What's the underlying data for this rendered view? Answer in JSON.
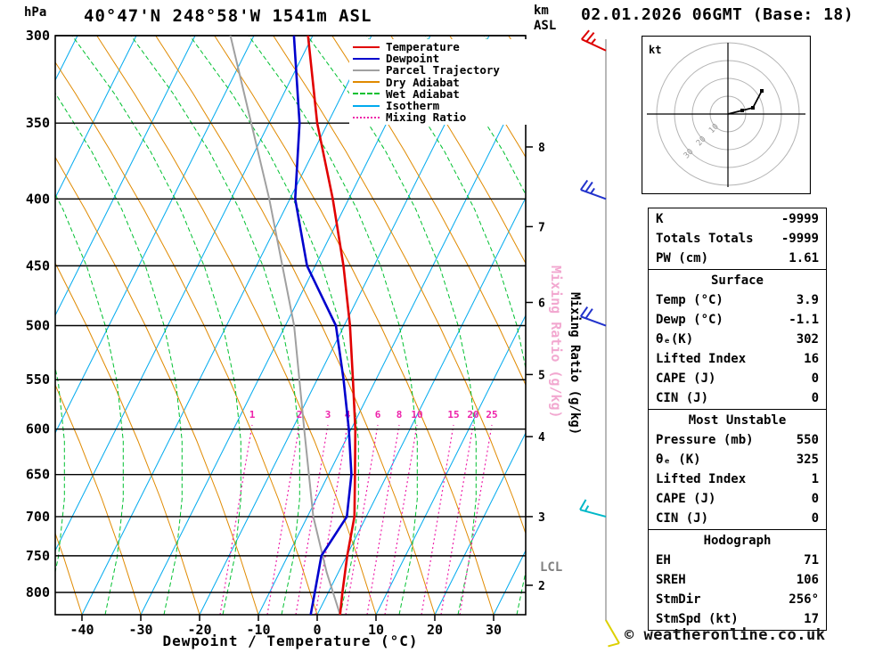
{
  "header": {
    "title": "40°47'N 248°58'W 1541m ASL",
    "datetime": "02.01.2026 06GMT (Base: 18)",
    "pressure_unit": "hPa",
    "altitude_unit": "km",
    "altitude_ref": "ASL"
  },
  "colors": {
    "temperature": "#e10000",
    "dewpoint": "#0000cd",
    "parcel": "#a0a0a0",
    "dry_adiabat": "#e08a00",
    "wet_adiabat": "#00c030",
    "isotherm": "#00aaee",
    "mixing_ratio": "#ee22aa",
    "watermark_pink": "#f2a8d0",
    "barb_column": "#a0a0a0"
  },
  "axes": {
    "pressure_ticks": [
      300,
      350,
      400,
      450,
      500,
      550,
      600,
      650,
      700,
      750,
      800
    ],
    "temperature_ticks": [
      -40,
      -30,
      -20,
      -10,
      0,
      10,
      20,
      30
    ],
    "x_label": "Dewpoint / Temperature (°C)",
    "right_axis_label": "Mixing Ratio (g/kg)",
    "km_ticks": [
      {
        "km": "8",
        "p": 365
      },
      {
        "km": "7",
        "p": 420
      },
      {
        "km": "6",
        "p": 480
      },
      {
        "km": "5",
        "p": 545
      },
      {
        "km": "4",
        "p": 608
      },
      {
        "km": "3",
        "p": 700
      },
      {
        "km": "2",
        "p": 790
      }
    ],
    "lcl": {
      "label": "LCL",
      "pressure": 772
    }
  },
  "legend": [
    {
      "label": "Temperature",
      "color": "#e10000",
      "style": "solid"
    },
    {
      "label": "Dewpoint",
      "color": "#0000cd",
      "style": "solid"
    },
    {
      "label": "Parcel Trajectory",
      "color": "#a0a0a0",
      "style": "solid"
    },
    {
      "label": "Dry Adiabat",
      "color": "#e08a00",
      "style": "solid"
    },
    {
      "label": "Wet Adiabat",
      "color": "#00c030",
      "style": "dashed"
    },
    {
      "label": "Isotherm",
      "color": "#00aaee",
      "style": "solid"
    },
    {
      "label": "Mixing Ratio",
      "color": "#ee22aa",
      "style": "dotted"
    }
  ],
  "mixing_ratio_labels": [
    {
      "value": "1",
      "x": 283
    },
    {
      "value": "2",
      "x": 336
    },
    {
      "value": "3",
      "x": 368
    },
    {
      "value": "4",
      "x": 390
    },
    {
      "value": "6",
      "x": 424
    },
    {
      "value": "8",
      "x": 448
    },
    {
      "value": "10",
      "x": 468
    },
    {
      "value": "15",
      "x": 509
    },
    {
      "value": "20",
      "x": 531
    },
    {
      "value": "25",
      "x": 552
    }
  ],
  "wind_barbs": [
    {
      "pressure": 308,
      "color": "#dd0000",
      "speed_kt": 25,
      "dir_deg": 295
    },
    {
      "pressure": 400,
      "color": "#2233cc",
      "speed_kt": 25,
      "dir_deg": 290
    },
    {
      "pressure": 500,
      "color": "#2233cc",
      "speed_kt": 20,
      "dir_deg": 290
    },
    {
      "pressure": 700,
      "color": "#00b8c8",
      "speed_kt": 15,
      "dir_deg": 285
    },
    {
      "pressure": 840,
      "color": "#ddd000",
      "speed_kt": 10,
      "dir_deg": 150
    }
  ],
  "hodograph": {
    "unit_label": "kt",
    "rings_kt": [
      10,
      20,
      30,
      40
    ],
    "ring_labels": [
      "10",
      "20",
      "30"
    ],
    "trace_kt": [
      [
        0,
        0
      ],
      [
        8,
        2
      ],
      [
        14,
        3.5
      ],
      [
        19,
        13
      ]
    ]
  },
  "table": {
    "top": [
      {
        "label": "K",
        "value": "-9999"
      },
      {
        "label": "Totals Totals",
        "value": "-9999"
      },
      {
        "label": "PW (cm)",
        "value": "1.61"
      }
    ],
    "sections": [
      {
        "title": "Surface",
        "rows": [
          {
            "label": "Temp (°C)",
            "value": "3.9"
          },
          {
            "label": "Dewp (°C)",
            "value": "-1.1"
          },
          {
            "label": "θₑ(K)",
            "value": "302"
          },
          {
            "label": "Lifted Index",
            "value": "16"
          },
          {
            "label": "CAPE (J)",
            "value": "0"
          },
          {
            "label": "CIN (J)",
            "value": "0"
          }
        ]
      },
      {
        "title": "Most Unstable",
        "rows": [
          {
            "label": "Pressure (mb)",
            "value": "550"
          },
          {
            "label": "θₑ (K)",
            "value": "325"
          },
          {
            "label": "Lifted Index",
            "value": "1"
          },
          {
            "label": "CAPE (J)",
            "value": "0"
          },
          {
            "label": "CIN (J)",
            "value": "0"
          }
        ]
      },
      {
        "title": "Hodograph",
        "rows": [
          {
            "label": "EH",
            "value": "71"
          },
          {
            "label": "SREH",
            "value": "106"
          },
          {
            "label": "StmDir",
            "value": "256°"
          },
          {
            "label": "StmSpd (kt)",
            "value": "17"
          }
        ]
      }
    ]
  },
  "footer": {
    "copyright": "© weatheronline.co.uk"
  },
  "chart_data": {
    "type": "line",
    "subtype": "skew-t log-p sounding",
    "title": "40°47'N 248°58'W 1541m ASL",
    "x_axis": {
      "label": "Dewpoint / Temperature (°C)",
      "range_c": [
        -45,
        38
      ]
    },
    "y_axis": {
      "label": "hPa",
      "scale": "log",
      "range_hpa": [
        300,
        832
      ]
    },
    "grid": "on",
    "legend_position": "top-right",
    "series": [
      {
        "name": "Temperature",
        "color": "#e10000",
        "points_p_t": [
          [
            832,
            3.9
          ],
          [
            800,
            2.4
          ],
          [
            750,
            0.1
          ],
          [
            700,
            -2.0
          ],
          [
            650,
            -5.5
          ],
          [
            600,
            -9.3
          ],
          [
            550,
            -13.9
          ],
          [
            500,
            -19.0
          ],
          [
            450,
            -25.2
          ],
          [
            400,
            -32.7
          ],
          [
            350,
            -41.8
          ],
          [
            300,
            -50.8
          ]
        ]
      },
      {
        "name": "Dewpoint",
        "color": "#0000cd",
        "points_p_t": [
          [
            832,
            -1.1
          ],
          [
            800,
            -2.3
          ],
          [
            750,
            -4.3
          ],
          [
            700,
            -3.3
          ],
          [
            650,
            -6.1
          ],
          [
            600,
            -10.4
          ],
          [
            550,
            -15.5
          ],
          [
            500,
            -21.4
          ],
          [
            450,
            -31.4
          ],
          [
            400,
            -39.1
          ],
          [
            350,
            -44.8
          ],
          [
            300,
            -53.2
          ]
        ]
      },
      {
        "name": "Parcel Trajectory",
        "color": "#a0a0a0",
        "points_p_t": [
          [
            832,
            3.9
          ],
          [
            772,
            -2.0
          ],
          [
            700,
            -9.0
          ],
          [
            600,
            -18.0
          ],
          [
            500,
            -28.5
          ],
          [
            400,
            -43.5
          ],
          [
            300,
            -64.0
          ]
        ]
      }
    ],
    "pressure_levels_hpa": [
      300,
      350,
      400,
      450,
      500,
      550,
      600,
      650,
      700,
      750,
      800
    ],
    "mixing_ratio_lines_g_kg": [
      1,
      2,
      3,
      4,
      6,
      8,
      10,
      15,
      20,
      25
    ],
    "indices": {
      "K": -9999,
      "Totals_Totals": -9999,
      "PW_cm": 1.61,
      "surface": {
        "temp_c": 3.9,
        "dewp_c": -1.1,
        "theta_e_k": 302,
        "lifted_index": 16,
        "cape_j": 0,
        "cin_j": 0
      },
      "most_unstable": {
        "pressure_mb": 550,
        "theta_e_k": 325,
        "lifted_index": 1,
        "cape_j": 0,
        "cin_j": 0
      },
      "hodograph": {
        "EH": 71,
        "SREH": 106,
        "StmDir_deg": 256,
        "StmSpd_kt": 17
      }
    }
  }
}
